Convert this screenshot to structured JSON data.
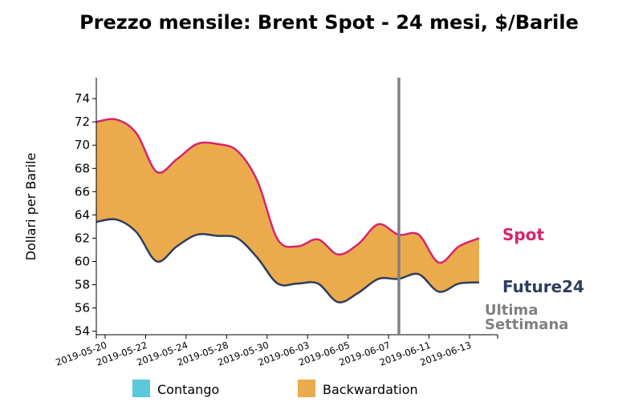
{
  "chart_data": {
    "type": "area",
    "title": "Prezzo mensile: Brent Spot - 24 mesi, $/Barile",
    "xlabel": "",
    "ylabel": "Dollari per Barile",
    "ylim": [
      53.7,
      75.8
    ],
    "yticks": [
      54,
      56,
      58,
      60,
      62,
      64,
      66,
      68,
      70,
      72,
      74
    ],
    "xticks": [
      "2019-05-20",
      "2019-05-22",
      "2019-05-24",
      "2019-05-28",
      "2019-05-30",
      "2019-06-03",
      "2019-06-05",
      "2019-06-07",
      "2019-06-11",
      "2019-06-13"
    ],
    "x": [
      "2019-05-17",
      "2019-05-20",
      "2019-05-21",
      "2019-05-22",
      "2019-05-23",
      "2019-05-24",
      "2019-05-28",
      "2019-05-29",
      "2019-05-30",
      "2019-05-31",
      "2019-06-03",
      "2019-06-04",
      "2019-06-05",
      "2019-06-06",
      "2019-06-07",
      "2019-06-10",
      "2019-06-11",
      "2019-06-12",
      "2019-06-13",
      "2019-06-14"
    ],
    "series": [
      {
        "name": "Spot",
        "color": "#d6246e",
        "values": [
          72.0,
          72.2,
          71.0,
          67.7,
          68.8,
          70.1,
          70.1,
          69.5,
          66.9,
          61.9,
          61.3,
          61.9,
          60.6,
          61.5,
          63.2,
          62.3,
          62.3,
          59.9,
          61.3,
          62.0
        ]
      },
      {
        "name": "Future24",
        "color": "#2e3d5e",
        "values": [
          63.4,
          63.6,
          62.5,
          60.0,
          61.3,
          62.3,
          62.2,
          62.0,
          60.3,
          58.1,
          58.1,
          58.1,
          56.5,
          57.3,
          58.5,
          58.5,
          58.9,
          57.4,
          58.1,
          58.2
        ]
      }
    ],
    "marker_line": {
      "label_line1": "Ultima",
      "label_line2": "Settimana",
      "color": "#808080"
    },
    "legend": {
      "placement": "bottom",
      "items": [
        {
          "label": "Contango",
          "color": "#5bc8dc"
        },
        {
          "label": "Backwardation",
          "color": "#ebab4c"
        }
      ]
    },
    "grid": false
  }
}
